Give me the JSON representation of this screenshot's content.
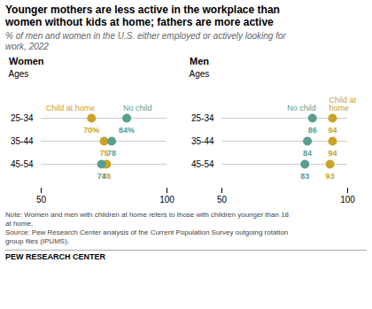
{
  "chart_data": {
    "type": "dot",
    "title": "Younger mothers are less active in the workplace than\nwomen without kids at home; fathers are more active",
    "subtitle": "% of men and women in the U.S. either employed or actively looking for\nwork, 2022",
    "note": "Note: Women and men with children at home refers to those with children younger than 18\nat home.\nSource: Pew Research Center analysis of the Current Population Survey outgoing rotation\ngroup files (IPUMS).",
    "footer": "PEW RESEARCH CENTER",
    "panels": [
      {
        "title": "Women",
        "y_label": "Ages",
        "categories": [
          "25-34",
          "35-44",
          "45-54"
        ],
        "xlim": [
          50,
          100
        ],
        "xticks": [
          50,
          100
        ],
        "grid": true,
        "data_labels": true,
        "series": [
          {
            "name": "Child at home",
            "color": "#c9a227",
            "values": [
              70,
              75,
              76
            ],
            "value_labels": [
              "70%",
              "75",
              "76"
            ]
          },
          {
            "name": "No child",
            "color": "#5a9e8f",
            "values": [
              84,
              78,
              74
            ],
            "value_labels": [
              "84%",
              "78",
              "74"
            ]
          }
        ]
      },
      {
        "title": "Men",
        "y_label": "Ages",
        "categories": [
          "25-34",
          "35-44",
          "45-54"
        ],
        "xlim": [
          50,
          100
        ],
        "xticks": [
          50,
          100
        ],
        "grid": true,
        "data_labels": true,
        "series": [
          {
            "name": "No child",
            "color": "#5a9e8f",
            "values": [
              86,
              84,
              83
            ]
          },
          {
            "name": "Child at\nhome",
            "color": "#c9a227",
            "values": [
              94,
              94,
              93
            ]
          }
        ]
      }
    ]
  }
}
